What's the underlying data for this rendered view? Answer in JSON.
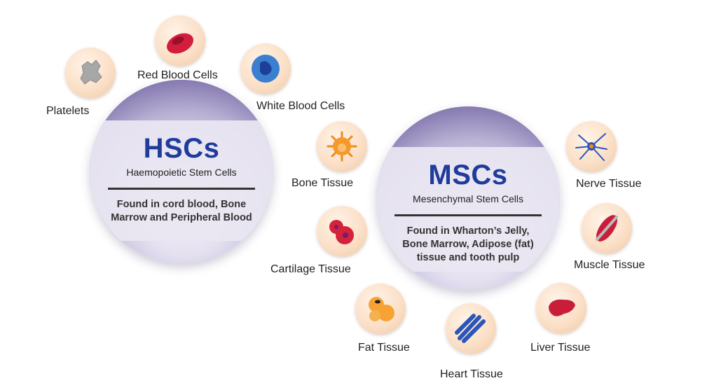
{
  "hsc": {
    "abbr": "HSCs",
    "name": "Haemopoietic Stem Cells",
    "description": "Found in cord blood, Bone Marrow and Peripheral Blood"
  },
  "msc": {
    "abbr": "MSCs",
    "name": "Mesenchymal Stem Cells",
    "description": "Found in Wharton’s Jelly, Bone Marrow, Adipose (fat) tissue and tooth pulp"
  },
  "hsc_products": {
    "platelets": "Platelets",
    "red_blood_cells": "Red Blood Cells",
    "white_blood_cells": "White Blood Cells"
  },
  "msc_products": {
    "bone": "Bone Tissue",
    "cartilage": "Cartilage Tissue",
    "fat": "Fat Tissue",
    "heart": "Heart Tissue",
    "liver": "Liver Tissue",
    "muscle": "Muscle Tissue",
    "nerve": "Nerve Tissue"
  },
  "colors": {
    "title_blue": "#1f3c9c",
    "icon_bg": "#fbe0c8",
    "sphere_purple": "#7a6da8"
  }
}
